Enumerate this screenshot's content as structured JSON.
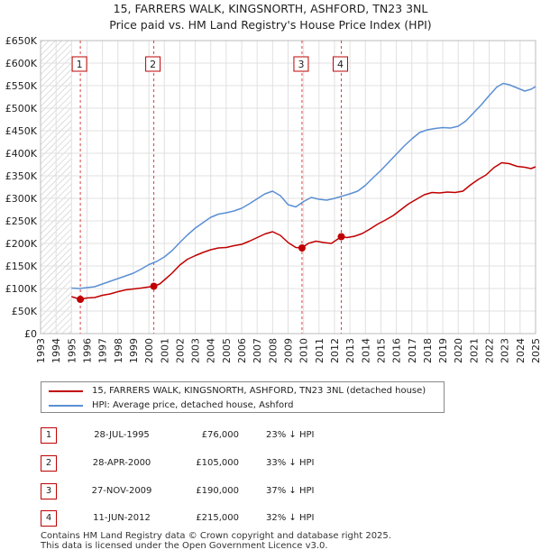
{
  "chart_data": {
    "type": "line",
    "title": "15, FARRERS WALK, KINGSNORTH, ASHFORD, TN23 3NL",
    "subtitle": "Price paid vs. HM Land Registry's House Price Index (HPI)",
    "ylim": [
      0,
      650000
    ],
    "xlim": [
      1993,
      2025
    ],
    "y_ticks": [
      {
        "value": 0,
        "label": "£0"
      },
      {
        "value": 50000,
        "label": "£50K"
      },
      {
        "value": 100000,
        "label": "£100K"
      },
      {
        "value": 150000,
        "label": "£150K"
      },
      {
        "value": 200000,
        "label": "£200K"
      },
      {
        "value": 250000,
        "label": "£250K"
      },
      {
        "value": 300000,
        "label": "£300K"
      },
      {
        "value": 350000,
        "label": "£350K"
      },
      {
        "value": 400000,
        "label": "£400K"
      },
      {
        "value": 450000,
        "label": "£450K"
      },
      {
        "value": 500000,
        "label": "£500K"
      },
      {
        "value": 550000,
        "label": "£550K"
      },
      {
        "value": 600000,
        "label": "£600K"
      },
      {
        "value": 650000,
        "label": "£650K"
      }
    ],
    "x_ticks": [
      "1993",
      "1994",
      "1995",
      "1996",
      "1997",
      "1998",
      "1999",
      "2000",
      "2001",
      "2002",
      "2003",
      "2004",
      "2005",
      "2006",
      "2007",
      "2008",
      "2009",
      "2010",
      "2011",
      "2012",
      "2013",
      "2014",
      "2015",
      "2016",
      "2017",
      "2018",
      "2019",
      "2020",
      "2021",
      "2022",
      "2023",
      "2024",
      "2025"
    ],
    "hatch_until": 1995.0,
    "series": [
      {
        "name": "15, FARRERS WALK, KINGSNORTH, ASHFORD, TN23 3NL (detached house)",
        "color": "#c00000",
        "points": [
          [
            1995.0,
            82000
          ],
          [
            1995.57,
            76000
          ],
          [
            1996.0,
            79000
          ],
          [
            1996.5,
            80000
          ],
          [
            1997.0,
            85000
          ],
          [
            1997.5,
            88000
          ],
          [
            1998.0,
            93000
          ],
          [
            1998.5,
            97000
          ],
          [
            1999.0,
            99000
          ],
          [
            1999.5,
            101000
          ],
          [
            2000.32,
            105000
          ],
          [
            2000.7,
            110000
          ],
          [
            2001.0,
            119000
          ],
          [
            2001.5,
            134000
          ],
          [
            2002.0,
            152000
          ],
          [
            2002.5,
            165000
          ],
          [
            2003.0,
            173000
          ],
          [
            2003.5,
            180000
          ],
          [
            2004.0,
            186000
          ],
          [
            2004.5,
            190000
          ],
          [
            2005.0,
            191000
          ],
          [
            2005.5,
            195000
          ],
          [
            2006.0,
            198000
          ],
          [
            2006.5,
            205000
          ],
          [
            2007.0,
            213000
          ],
          [
            2007.5,
            221000
          ],
          [
            2008.0,
            226000
          ],
          [
            2008.5,
            218000
          ],
          [
            2009.0,
            202000
          ],
          [
            2009.5,
            191000
          ],
          [
            2009.9,
            190000
          ],
          [
            2010.3,
            200000
          ],
          [
            2010.8,
            205000
          ],
          [
            2011.3,
            202000
          ],
          [
            2011.8,
            200000
          ],
          [
            2012.44,
            215000
          ],
          [
            2012.8,
            213000
          ],
          [
            2013.3,
            216000
          ],
          [
            2013.8,
            222000
          ],
          [
            2014.3,
            232000
          ],
          [
            2014.8,
            243000
          ],
          [
            2015.3,
            252000
          ],
          [
            2015.8,
            262000
          ],
          [
            2016.3,
            275000
          ],
          [
            2016.8,
            288000
          ],
          [
            2017.3,
            298000
          ],
          [
            2017.8,
            308000
          ],
          [
            2018.3,
            313000
          ],
          [
            2018.8,
            312000
          ],
          [
            2019.3,
            314000
          ],
          [
            2019.8,
            313000
          ],
          [
            2020.3,
            316000
          ],
          [
            2020.8,
            330000
          ],
          [
            2021.3,
            342000
          ],
          [
            2021.8,
            352000
          ],
          [
            2022.3,
            368000
          ],
          [
            2022.8,
            379000
          ],
          [
            2023.3,
            377000
          ],
          [
            2023.8,
            371000
          ],
          [
            2024.3,
            369000
          ],
          [
            2024.7,
            366000
          ],
          [
            2025.0,
            370000
          ]
        ]
      },
      {
        "name": "HPI: Average price, detached house, Ashford",
        "color": "#5b8fd4",
        "points": [
          [
            1995.0,
            101000
          ],
          [
            1995.5,
            100000
          ],
          [
            1996.0,
            102000
          ],
          [
            1996.5,
            104000
          ],
          [
            1997.0,
            110000
          ],
          [
            1997.5,
            116000
          ],
          [
            1998.0,
            122000
          ],
          [
            1998.5,
            128000
          ],
          [
            1999.0,
            134000
          ],
          [
            1999.5,
            143000
          ],
          [
            2000.0,
            153000
          ],
          [
            2000.5,
            160000
          ],
          [
            2001.0,
            170000
          ],
          [
            2001.5,
            184000
          ],
          [
            2002.0,
            202000
          ],
          [
            2002.5,
            219000
          ],
          [
            2003.0,
            234000
          ],
          [
            2003.5,
            246000
          ],
          [
            2004.0,
            258000
          ],
          [
            2004.5,
            265000
          ],
          [
            2005.0,
            268000
          ],
          [
            2005.5,
            272000
          ],
          [
            2006.0,
            278000
          ],
          [
            2006.5,
            288000
          ],
          [
            2007.0,
            299000
          ],
          [
            2007.5,
            310000
          ],
          [
            2008.0,
            316000
          ],
          [
            2008.5,
            306000
          ],
          [
            2009.0,
            286000
          ],
          [
            2009.5,
            281000
          ],
          [
            2010.0,
            293000
          ],
          [
            2010.5,
            302000
          ],
          [
            2011.0,
            298000
          ],
          [
            2011.5,
            296000
          ],
          [
            2012.0,
            300000
          ],
          [
            2012.5,
            305000
          ],
          [
            2013.0,
            310000
          ],
          [
            2013.5,
            316000
          ],
          [
            2014.0,
            329000
          ],
          [
            2014.5,
            346000
          ],
          [
            2015.0,
            362000
          ],
          [
            2015.5,
            380000
          ],
          [
            2016.0,
            398000
          ],
          [
            2016.5,
            416000
          ],
          [
            2017.0,
            432000
          ],
          [
            2017.5,
            446000
          ],
          [
            2018.0,
            452000
          ],
          [
            2018.5,
            455000
          ],
          [
            2019.0,
            457000
          ],
          [
            2019.5,
            456000
          ],
          [
            2020.0,
            460000
          ],
          [
            2020.5,
            472000
          ],
          [
            2021.0,
            490000
          ],
          [
            2021.5,
            508000
          ],
          [
            2022.0,
            528000
          ],
          [
            2022.5,
            547000
          ],
          [
            2022.9,
            555000
          ],
          [
            2023.3,
            552000
          ],
          [
            2023.8,
            545000
          ],
          [
            2024.3,
            538000
          ],
          [
            2024.7,
            542000
          ],
          [
            2025.0,
            548000
          ]
        ]
      }
    ],
    "sales": [
      {
        "id": "1",
        "x": 1995.57,
        "price": 76000,
        "date": "28-JUL-1995",
        "price_label": "£76,000",
        "hpi": "23% ↓ HPI"
      },
      {
        "id": "2",
        "x": 2000.32,
        "price": 105000,
        "date": "28-APR-2000",
        "price_label": "£105,000",
        "hpi": "33% ↓ HPI"
      },
      {
        "id": "3",
        "x": 2009.9,
        "price": 190000,
        "date": "27-NOV-2009",
        "price_label": "£190,000",
        "hpi": "37% ↓ HPI"
      },
      {
        "id": "4",
        "x": 2012.44,
        "price": 215000,
        "date": "11-JUN-2012",
        "price_label": "£215,000",
        "hpi": "32% ↓ HPI"
      }
    ]
  },
  "footer": {
    "line1": "Contains HM Land Registry data © Crown copyright and database right 2025.",
    "line2": "This data is licensed under the Open Government Licence v3.0."
  }
}
